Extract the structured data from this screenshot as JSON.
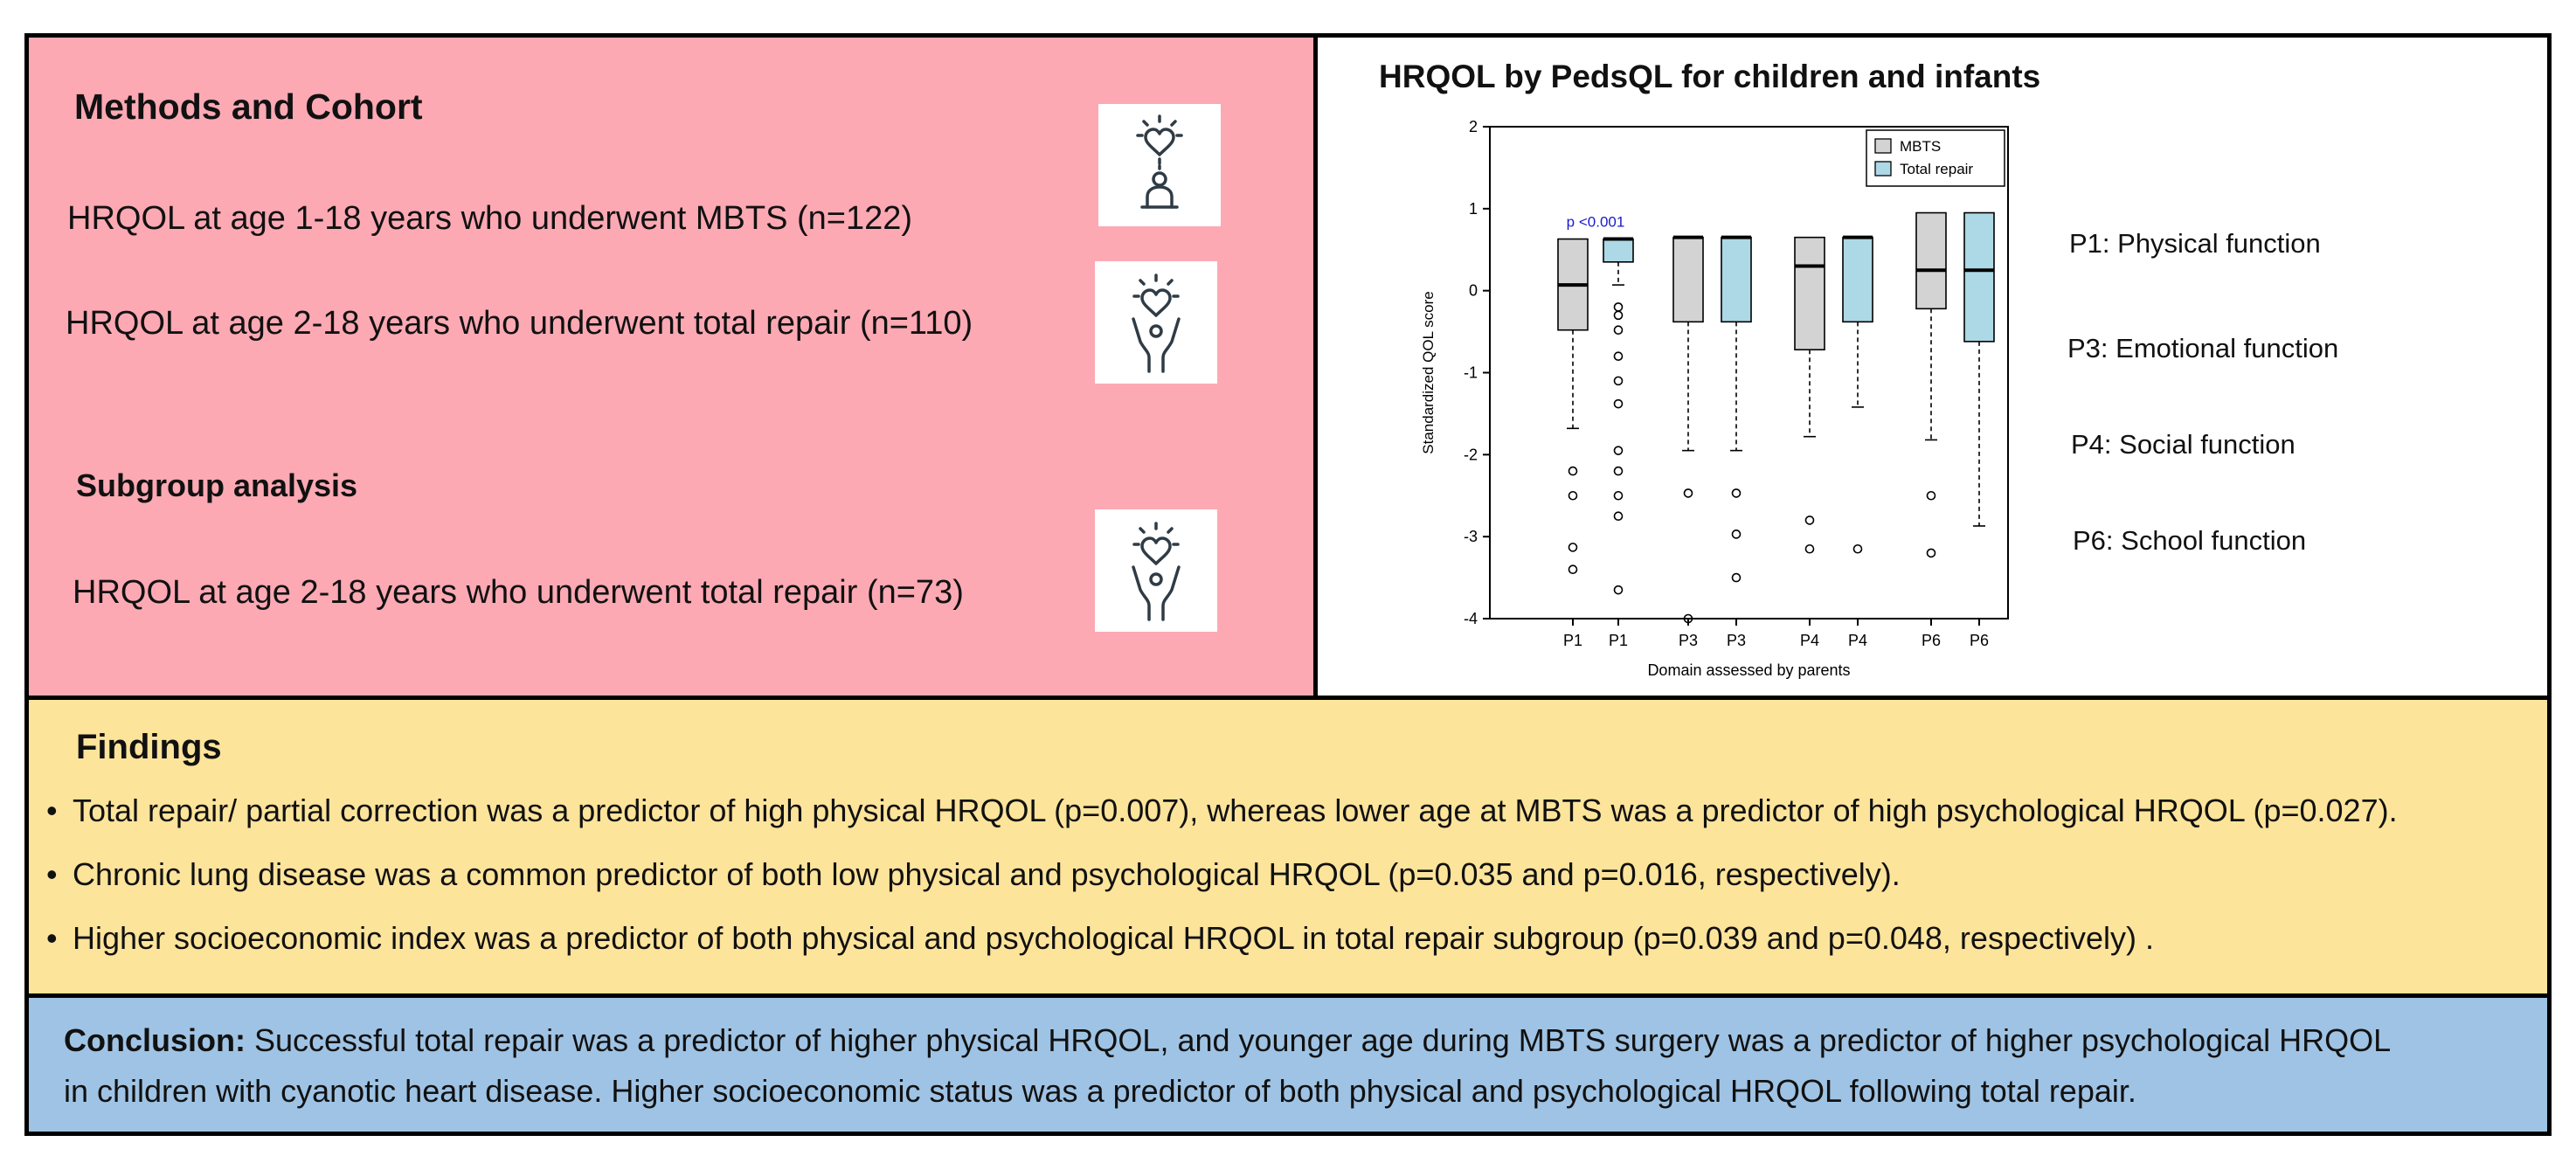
{
  "methods": {
    "title": "Methods and Cohort",
    "item1": "HRQOL at age 1-18 years who underwent MBTS (n=122)",
    "item2": "HRQOL at age 2-18 years who underwent total repair (n=110)",
    "subgroup_title": "Subgroup analysis",
    "item3": "HRQOL at age 2-18 years who underwent total repair (n=73)",
    "icons": [
      "heart-person-icon",
      "heart-hands-icon",
      "heart-hands-icon"
    ]
  },
  "chart_title": "HRQOL by PedsQL for children and infants",
  "side_labels": {
    "p1": "P1: Physical function",
    "p3": "P3: Emotional function",
    "p4": "P4: Social function",
    "p6": "P6: School function"
  },
  "chart_data": {
    "type": "box",
    "xlabel": "Domain assessed by parents",
    "ylabel": "Standardized QOL score",
    "ylim": [
      -4,
      2
    ],
    "yticks": [
      -4,
      -3,
      -2,
      -1,
      0,
      1,
      2
    ],
    "annotation": "p <0.001",
    "colors": {
      "MBTS": "#d3d3d3",
      "Total repair": "#add8e6",
      "annotation": "#1a1acc"
    },
    "legend": [
      "MBTS",
      "Total repair"
    ],
    "legend_position": "top-right",
    "boxes": [
      {
        "label": "P1",
        "series": "MBTS",
        "whisker_low": -1.68,
        "q1": -0.48,
        "median": 0.07,
        "q3": 0.63,
        "whisker_high": 0.63,
        "outliers": [
          -2.2,
          -2.5,
          -3.13,
          -3.4
        ]
      },
      {
        "label": "P1",
        "series": "Total repair",
        "whisker_low": 0.07,
        "q1": 0.35,
        "median": 0.63,
        "q3": 0.63,
        "whisker_high": 0.63,
        "outliers": [
          -0.2,
          -0.3,
          -0.48,
          -0.8,
          -1.1,
          -1.38,
          -1.95,
          -2.2,
          -2.5,
          -2.75,
          -3.65
        ]
      },
      {
        "label": "P3",
        "series": "MBTS",
        "whisker_low": -1.95,
        "q1": -0.38,
        "median": 0.65,
        "q3": 0.65,
        "whisker_high": 0.65,
        "outliers": [
          -2.47,
          -4.0
        ]
      },
      {
        "label": "P3",
        "series": "Total repair",
        "whisker_low": -1.95,
        "q1": -0.38,
        "median": 0.65,
        "q3": 0.65,
        "whisker_high": 0.65,
        "outliers": [
          -2.47,
          -2.97,
          -3.5
        ]
      },
      {
        "label": "P4",
        "series": "MBTS",
        "whisker_low": -1.78,
        "q1": -0.72,
        "median": 0.3,
        "q3": 0.65,
        "whisker_high": 0.65,
        "outliers": [
          -2.8,
          -3.15
        ]
      },
      {
        "label": "P4",
        "series": "Total repair",
        "whisker_low": -1.42,
        "q1": -0.38,
        "median": 0.65,
        "q3": 0.65,
        "whisker_high": 0.65,
        "outliers": [
          -3.15
        ]
      },
      {
        "label": "P6",
        "series": "MBTS",
        "whisker_low": -1.82,
        "q1": -0.22,
        "median": 0.25,
        "q3": 0.95,
        "whisker_high": 0.95,
        "outliers": [
          -2.5,
          -3.2
        ]
      },
      {
        "label": "P6",
        "series": "Total repair",
        "whisker_low": -2.87,
        "q1": -0.62,
        "median": 0.25,
        "q3": 0.95,
        "whisker_high": 0.95,
        "outliers": []
      }
    ]
  },
  "findings": {
    "title": "Findings",
    "bullet": "•",
    "items": [
      "Total repair/ partial correction was a predictor of high physical HRQOL (p=0.007), whereas lower age at MBTS was a predictor of high psychological HRQOL (p=0.027).",
      "Chronic lung disease was a common predictor of both low physical and psychological HRQOL (p=0.035 and p=0.016, respectively).",
      "Higher socioeconomic index was a predictor of both physical and psychological HRQOL in  total repair subgroup (p=0.039 and p=0.048, respectively) ."
    ]
  },
  "conclusion": {
    "label": "Conclusion:",
    "line1": " Successful total repair was a predictor of higher physical HRQOL, and younger age during MBTS surgery was a predictor of higher psychological HRQOL",
    "line2": "in children with cyanotic heart disease. Higher socioeconomic status was a predictor of both physical and psychological HRQOL following total repair."
  }
}
